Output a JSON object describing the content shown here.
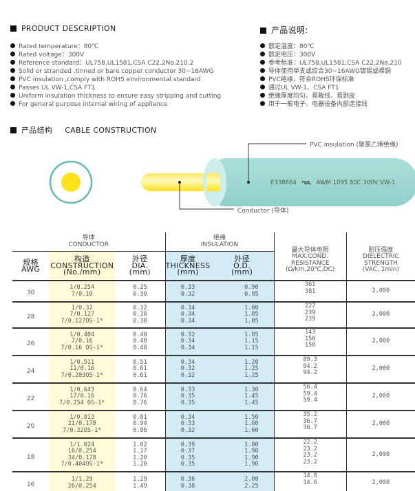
{
  "description_en": {
    "heading": "PRODUCT DESCRIPTION",
    "items": [
      "Rated temperature：80℃",
      "Rated voltage：300V",
      "Reference standard：UL758,UL1581,CSA C22.2No.210.2",
      "Solid or stranded ,tinned or bare copper conductor 30~16AWG",
      "PVC insulation ,comply with ROHS environmental standard",
      "Passes UL VW-1,CSA FT1",
      "Uniform insulation thickness to ensure easy stripping and cutting",
      "For general purpose internal wiring of appliance"
    ]
  },
  "description_cn": {
    "heading": "产品说明:",
    "items": [
      "额定温度：80℃",
      "额定电压：300V",
      "参考标准：UL758,UL1581,CSA C22.2No.210",
      "导体使用单支或绞合30~16AWG镀锡或裸铜",
      "PVC绝缘，符合ROHS环保标准",
      "通过UL VW-1、CSA FT1",
      "绝缘厚度均匀、易裁线、易剥皮",
      "用于一般电子、电器设备内部连接线"
    ]
  },
  "construction": {
    "heading_cn": "产品结构",
    "heading_en": "CABLE CONSTRUCTION",
    "pvc_label": "PVC insulation (聚氯乙烯绝缘)",
    "conductor_label": "Conductor (导体)",
    "print_prefix": "E338684",
    "ul_mark": "UL",
    "print_suffix": "AWM 1095 80C 300V VW-1",
    "colors": {
      "insulation": "#9fd8d2",
      "conductor": "#ffe21a"
    }
  },
  "table": {
    "conductor_cn": "导体",
    "conductor_en": "CONDUCTOR",
    "insulation_cn": "绝缘",
    "insulation_en": "INSULATION",
    "awg_cn": "规格",
    "awg_en": "AWG",
    "cons_cn": "构造",
    "cons_en": "CONSTRUCTION",
    "cons_unit": "(No./mm)",
    "dia_cn": "外径",
    "dia_en": "DIA.",
    "dia_unit": "(mm)",
    "thk_cn": "厚度",
    "thk_en": "THICKNESS",
    "thk_unit": "(mm)",
    "od_cn": "外径",
    "od_en": "O.D.",
    "od_unit": "(mm)",
    "res_cn": "最大导体电阻",
    "res_en1": "MAX.COND.",
    "res_en2": "RESISTANCE",
    "res_unit": "(Ω/km,20℃,DC)",
    "die_cn": "耐压强度",
    "die_en1": "DIELECTRIC",
    "die_en2": "STRENGTH",
    "die_unit": "(VAC, 1min)",
    "rows": [
      {
        "awg": "30",
        "construction": [
          "1/0.254",
          "7/0.10"
        ],
        "dia": [
          "0.25",
          "0.30"
        ],
        "thickness": [
          "0.33",
          "0.32"
        ],
        "od": [
          "0.90",
          "0.95"
        ],
        "resistance": [
          "361",
          "381"
        ],
        "dielectric": "2,000"
      },
      {
        "awg": "28",
        "construction": [
          "1/0.32",
          "7/0.127",
          "7/0.127OS-1*"
        ],
        "dia": [
          "0.32",
          "0.38",
          "0.38"
        ],
        "thickness": [
          "0.34",
          "0.34",
          "0.34"
        ],
        "od": [
          "1.00",
          "1.05",
          "1.05"
        ],
        "resistance": [
          "227",
          "239",
          "239"
        ],
        "dielectric": "2,000"
      },
      {
        "awg": "26",
        "construction": [
          "1/0.404",
          "7/0.16",
          "7/0.16 OS-1*"
        ],
        "dia": [
          "0.40",
          "0.48",
          "0.48"
        ],
        "thickness": [
          "0.32",
          "0.34",
          "0.34"
        ],
        "od": [
          "1.05",
          "1.15",
          "1.15"
        ],
        "resistance": [
          "143",
          "150",
          "150"
        ],
        "dielectric": "2,000"
      },
      {
        "awg": "24",
        "construction": [
          "1/0.511",
          "11/0.16",
          "7/0.203OS-1*"
        ],
        "dia": [
          "0.51",
          "0.61",
          "0.61"
        ],
        "thickness": [
          "0.34",
          "0.32",
          "0.32"
        ],
        "od": [
          "1.20",
          "1.25",
          "1.25"
        ],
        "resistance": [
          "89.3",
          "94.2",
          "94.2"
        ],
        "dielectric": "2,000"
      },
      {
        "awg": "22",
        "construction": [
          "1/0.643",
          "17/0.16",
          "7/0.254 OS-1*"
        ],
        "dia": [
          "0.64",
          "0.76",
          "0.76"
        ],
        "thickness": [
          "0.33",
          "0.35",
          "0.35"
        ],
        "od": [
          "1.30",
          "1.45",
          "1.45"
        ],
        "resistance": [
          "56.4",
          "59.4",
          "59.4"
        ],
        "dielectric": "2,000"
      },
      {
        "awg": "20",
        "construction": [
          "1/0.813",
          "21/0.178",
          "7/0.32OS-1*"
        ],
        "dia": [
          "0.81",
          "0.94",
          "0.96"
        ],
        "thickness": [
          "0.34",
          "0.33",
          "0.32"
        ],
        "od": [
          "1.50",
          "1.60",
          "1.60"
        ],
        "resistance": [
          "35.2",
          "36.7",
          "36.7"
        ],
        "dielectric": "2,000"
      },
      {
        "awg": "18",
        "construction": [
          "1/1.024",
          "16/0.254",
          "34/0.178",
          "7/0.404OS-1*"
        ],
        "dia": [
          "1.02",
          "1.17",
          "1.20",
          "1.20"
        ],
        "thickness": [
          "0.39",
          "0.37",
          "0.35",
          "0.35"
        ],
        "od": [
          "1.80",
          "1.90",
          "1.90",
          "1.90"
        ],
        "resistance": [
          "22.2",
          "23.2",
          "23.2",
          "23.2"
        ],
        "dielectric": "2,000"
      },
      {
        "awg": "16",
        "construction": [
          "1/1.29",
          "26/0.254"
        ],
        "dia": [
          "1.29",
          "1.49"
        ],
        "thickness": [
          "0.36",
          "0.38"
        ],
        "od": [
          "2.00",
          "2.25"
        ],
        "resistance": [
          "14.0",
          "14.6"
        ],
        "dielectric": "2,000"
      }
    ]
  }
}
